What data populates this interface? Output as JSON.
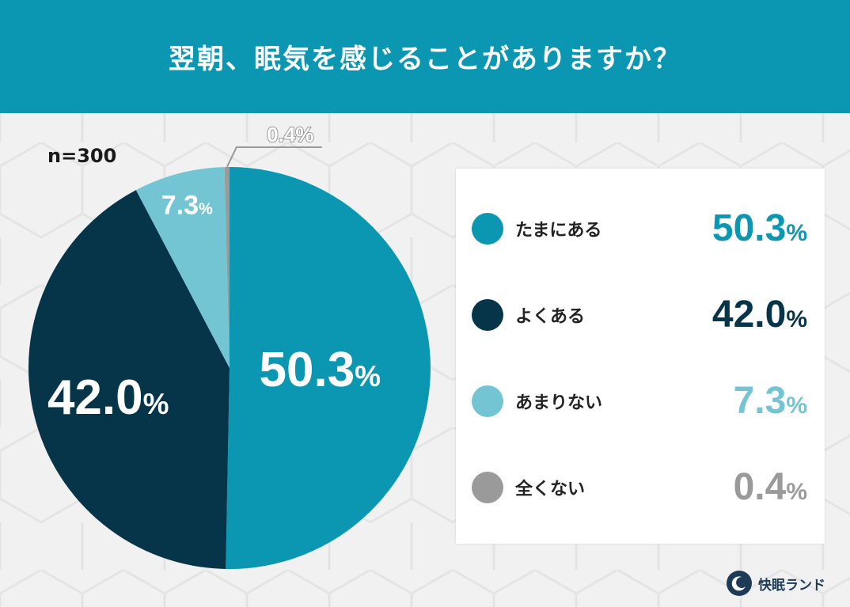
{
  "title": "翌朝、眠気を感じることがありますか？",
  "sample_label": "n=300",
  "brand": "快眠ランド",
  "chart_data": {
    "type": "pie",
    "start": "12 o'clock",
    "direction": "clockwise",
    "slices": [
      {
        "label": "たまにある",
        "value": 50.3,
        "display": "50.3",
        "unit": "%",
        "color": "#0b97b1"
      },
      {
        "label": "よくある",
        "value": 42.0,
        "display": "42.0",
        "unit": "%",
        "color": "#063449"
      },
      {
        "label": "あまりない",
        "value": 7.3,
        "display": "7.3",
        "unit": "%",
        "color": "#74c5d4"
      },
      {
        "label": "全くない",
        "value": 0.4,
        "display": "0.4",
        "unit": "%",
        "color": "#9a9a9a"
      }
    ],
    "legend_placement": "right"
  }
}
